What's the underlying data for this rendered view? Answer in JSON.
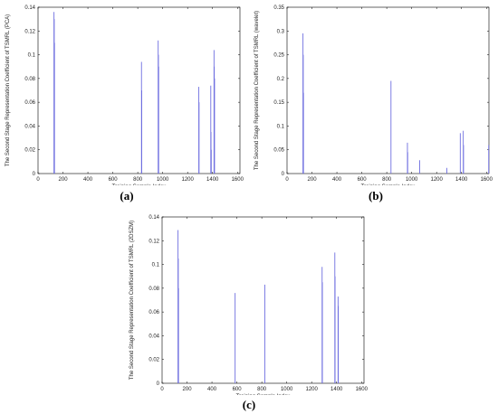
{
  "captions": [
    "(a)",
    "(b)",
    "(c)"
  ],
  "chart_data": [
    {
      "type": "bar",
      "xlabel": "Training Sample Index",
      "ylabel": "The Second Stage Representation Coefficient of TSMRL (PCA)",
      "xlim": [
        0,
        1620
      ],
      "ylim": [
        0,
        0.14
      ],
      "xticks": [
        0,
        200,
        400,
        600,
        800,
        1000,
        1200,
        1400,
        1600
      ],
      "yticks": [
        0,
        0.02,
        0.04,
        0.06,
        0.08,
        0.1,
        0.12,
        0.14
      ],
      "ytick_labels": [
        "0",
        "0.02",
        "0.04",
        "0.06",
        "0.08",
        "0.1",
        "0.12",
        "0.14"
      ],
      "bar_color": "#6f6fe0",
      "x": [
        128,
        130,
        132,
        830,
        832,
        964,
        966,
        968,
        1290,
        1292,
        1386,
        1388,
        1390,
        1412,
        1414,
        1416
      ],
      "values": [
        0.136,
        0.13,
        0.11,
        0.094,
        0.07,
        0.112,
        0.1,
        0.09,
        0.073,
        0.06,
        0.074,
        0.035,
        0.02,
        0.104,
        0.09,
        0.08
      ]
    },
    {
      "type": "bar",
      "xlabel": "Training Sample Index",
      "ylabel": "The Second Stage Representation Coefficient of TSMRL (wavelet)",
      "xlim": [
        0,
        1620
      ],
      "ylim": [
        0,
        0.35
      ],
      "xticks": [
        0,
        200,
        400,
        600,
        800,
        1000,
        1200,
        1400,
        1600
      ],
      "yticks": [
        0,
        0.05,
        0.1,
        0.15,
        0.2,
        0.25,
        0.3,
        0.35
      ],
      "ytick_labels": [
        "0",
        "0.05",
        "0.1",
        "0.15",
        "0.2",
        "0.25",
        "0.3",
        "0.35"
      ],
      "bar_color": "#6f6fe0",
      "x": [
        128,
        130,
        132,
        834,
        966,
        968,
        1064,
        1282,
        1390,
        1414,
        1416,
        1618
      ],
      "values": [
        0.295,
        0.25,
        0.17,
        0.195,
        0.065,
        0.045,
        0.028,
        0.012,
        0.085,
        0.09,
        0.06,
        0.06
      ]
    },
    {
      "type": "bar",
      "xlabel": "Training Sample Index",
      "ylabel": "The Second Stage Representation Coefficient of TSMRL (2DSZM)",
      "xlim": [
        0,
        1620
      ],
      "ylim": [
        0,
        0.14
      ],
      "xticks": [
        0,
        200,
        400,
        600,
        800,
        1000,
        1200,
        1400,
        1600
      ],
      "yticks": [
        0,
        0.02,
        0.04,
        0.06,
        0.08,
        0.1,
        0.12,
        0.14
      ],
      "ytick_labels": [
        "0",
        "0.02",
        "0.04",
        "0.06",
        "0.08",
        "0.1",
        "0.12",
        "0.14"
      ],
      "bar_color": "#6f6fe0",
      "x": [
        128,
        130,
        132,
        586,
        824,
        1284,
        1286,
        1386,
        1388,
        1412,
        1414
      ],
      "values": [
        0.129,
        0.105,
        0.08,
        0.076,
        0.083,
        0.098,
        0.085,
        0.11,
        0.09,
        0.073,
        0.065
      ]
    }
  ]
}
